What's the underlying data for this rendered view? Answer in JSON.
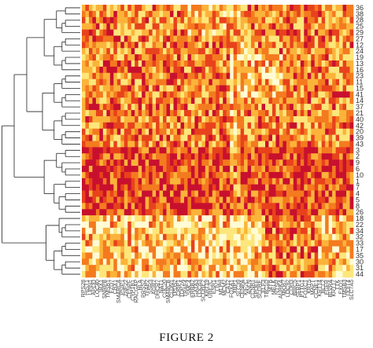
{
  "caption": "FIGURE 2",
  "chart_data": {
    "type": "heatmap",
    "title": "",
    "xlabel": "",
    "ylabel": "",
    "colormap": [
      "#c8102e",
      "#e8421c",
      "#f47a1f",
      "#fbb33a",
      "#fde67a",
      "#fffbd4"
    ],
    "legend": "none",
    "grid": false,
    "row_labels": [
      "36",
      "38",
      "28",
      "25",
      "29",
      "27",
      "12",
      "24",
      "19",
      "13",
      "16",
      "23",
      "11",
      "15",
      "41",
      "14",
      "37",
      "21",
      "40",
      "42",
      "20",
      "39",
      "43",
      "3",
      "2",
      "9",
      "6",
      "10",
      "1",
      "7",
      "4",
      "5",
      "8",
      "26",
      "18",
      "22",
      "34",
      "32",
      "33",
      "17",
      "35",
      "30",
      "31",
      "44"
    ],
    "col_labels": [
      "RPS28",
      "HIST1",
      "LPIN1",
      "APOD",
      "LOC40",
      "IRX1",
      "SNRPB",
      "TMSB1",
      "FZD7",
      "CBX1",
      "SMARCA",
      "PSIP1",
      "ZNF22",
      "CENPF",
      "CYP1B1",
      "RACGAP",
      "HLA",
      "PRSS2",
      "TFAP2",
      "SSR3",
      "AGR2",
      "DHCR7",
      "NAT1",
      "CDC20",
      "SMARCB",
      "CLDN1",
      "TPD52",
      "CRIP1",
      "TOP2A",
      "TRAF4",
      "SMC4",
      "ERBB2",
      "GATA3",
      "LOC63",
      "SCUBE2",
      "KRT19",
      "UBE2C",
      "ESR1",
      "LIV1",
      "MLPH",
      "MCM2",
      "CA12",
      "FOXA1",
      "XBP1",
      "SLC39",
      "CENPA",
      "KIF2C",
      "ANLN",
      "CCNB1",
      "SPDEF",
      "SCUBE",
      "ELF3",
      "TBC1D",
      "MYB",
      "MELK",
      "NTSR",
      "AURKA",
      "MKI67",
      "LOC92",
      "CDH3",
      "BIRC5",
      "SFRP1",
      "PTTG1",
      "FOXC1",
      "KRT5",
      "MAPT",
      "CCNE1",
      "KRT14",
      "BCL2",
      "EGFR",
      "BLVRA",
      "KRT17",
      "TTK",
      "EXO1",
      "TMSB3",
      "DDIT4",
      "SLC7A5"
    ],
    "values_description": "",
    "values": [],
    "row_dendrogram": "hierarchical clustering tree on left",
    "value_range": [
      0,
      5
    ]
  }
}
